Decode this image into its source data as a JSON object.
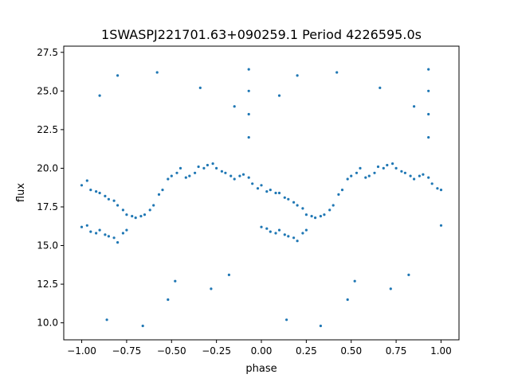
{
  "chart_data": {
    "type": "scatter",
    "title": "1SWASPJ221701.63+090259.1 Period 4226595.0s",
    "xlabel": "phase",
    "ylabel": "flux",
    "xlim": [
      -1.1,
      1.1
    ],
    "ylim": [
      8.9,
      27.9
    ],
    "xticks": [
      -1.0,
      -0.75,
      -0.5,
      -0.25,
      0.0,
      0.25,
      0.5,
      0.75,
      1.0
    ],
    "xtick_labels": [
      "−1.00",
      "−0.75",
      "−0.50",
      "−0.25",
      "0.00",
      "0.25",
      "0.50",
      "0.75",
      "1.00"
    ],
    "yticks": [
      10.0,
      12.5,
      15.0,
      17.5,
      20.0,
      22.5,
      25.0,
      27.5
    ],
    "ytick_labels": [
      "10.0",
      "12.5",
      "15.0",
      "17.5",
      "20.0",
      "22.5",
      "25.0",
      "27.5"
    ],
    "grid": false,
    "point_color": "#1f77b4",
    "series": [
      {
        "points": [
          [
            -1.0,
            18.9
          ],
          [
            -1.0,
            16.2
          ],
          [
            -0.97,
            19.2
          ],
          [
            -0.97,
            16.3
          ],
          [
            -0.95,
            18.6
          ],
          [
            -0.95,
            15.9
          ],
          [
            -0.92,
            18.5
          ],
          [
            -0.92,
            15.8
          ],
          [
            -0.9,
            18.4
          ],
          [
            -0.9,
            16.0
          ],
          [
            -0.87,
            18.2
          ],
          [
            -0.87,
            15.7
          ],
          [
            -0.85,
            18.0
          ],
          [
            -0.85,
            15.6
          ],
          [
            -0.82,
            17.9
          ],
          [
            -0.82,
            15.5
          ],
          [
            -0.8,
            17.6
          ],
          [
            -0.8,
            15.2
          ],
          [
            -0.77,
            17.3
          ],
          [
            -0.77,
            15.8
          ],
          [
            -0.75,
            17.0
          ],
          [
            -0.75,
            16.0
          ],
          [
            -0.72,
            16.9
          ],
          [
            -0.7,
            16.8
          ],
          [
            -0.67,
            16.9
          ],
          [
            -0.65,
            17.0
          ],
          [
            -0.62,
            17.3
          ],
          [
            -0.6,
            17.6
          ],
          [
            -0.57,
            18.3
          ],
          [
            -0.55,
            18.6
          ],
          [
            -0.52,
            19.3
          ],
          [
            -0.5,
            19.5
          ],
          [
            -0.47,
            19.7
          ],
          [
            -0.45,
            20.0
          ],
          [
            -0.42,
            19.4
          ],
          [
            -0.4,
            19.5
          ],
          [
            -0.37,
            19.7
          ],
          [
            -0.35,
            20.1
          ],
          [
            -0.32,
            20.0
          ],
          [
            -0.3,
            20.2
          ],
          [
            -0.27,
            20.3
          ],
          [
            -0.25,
            20.0
          ],
          [
            -0.22,
            19.8
          ],
          [
            -0.2,
            19.7
          ],
          [
            -0.17,
            19.5
          ],
          [
            -0.15,
            19.3
          ],
          [
            -0.12,
            19.5
          ],
          [
            -0.1,
            19.6
          ],
          [
            -0.07,
            19.4
          ],
          [
            -0.05,
            19.0
          ],
          [
            -0.02,
            18.7
          ],
          [
            0.0,
            18.9
          ],
          [
            0.0,
            16.2
          ],
          [
            0.03,
            18.5
          ],
          [
            0.03,
            16.1
          ],
          [
            0.05,
            18.6
          ],
          [
            0.05,
            15.9
          ],
          [
            0.08,
            18.4
          ],
          [
            0.08,
            15.8
          ],
          [
            0.1,
            18.4
          ],
          [
            0.1,
            16.0
          ],
          [
            0.13,
            18.1
          ],
          [
            0.13,
            15.7
          ],
          [
            0.15,
            18.0
          ],
          [
            0.15,
            15.6
          ],
          [
            0.18,
            17.8
          ],
          [
            0.18,
            15.5
          ],
          [
            0.2,
            17.6
          ],
          [
            0.2,
            15.3
          ],
          [
            0.23,
            17.4
          ],
          [
            0.23,
            15.8
          ],
          [
            0.25,
            17.0
          ],
          [
            0.25,
            16.0
          ],
          [
            0.28,
            16.9
          ],
          [
            0.3,
            16.8
          ],
          [
            0.33,
            16.9
          ],
          [
            0.35,
            17.0
          ],
          [
            0.38,
            17.3
          ],
          [
            0.4,
            17.6
          ],
          [
            0.43,
            18.3
          ],
          [
            0.45,
            18.6
          ],
          [
            0.48,
            19.3
          ],
          [
            0.5,
            19.5
          ],
          [
            0.53,
            19.7
          ],
          [
            0.55,
            20.0
          ],
          [
            0.58,
            19.4
          ],
          [
            0.6,
            19.5
          ],
          [
            0.63,
            19.7
          ],
          [
            0.65,
            20.1
          ],
          [
            0.68,
            20.0
          ],
          [
            0.7,
            20.2
          ],
          [
            0.73,
            20.3
          ],
          [
            0.75,
            20.0
          ],
          [
            0.78,
            19.8
          ],
          [
            0.8,
            19.7
          ],
          [
            0.83,
            19.5
          ],
          [
            0.85,
            19.3
          ],
          [
            0.88,
            19.5
          ],
          [
            0.9,
            19.6
          ],
          [
            0.93,
            19.4
          ],
          [
            0.95,
            19.0
          ],
          [
            0.98,
            18.7
          ],
          [
            1.0,
            18.6
          ],
          [
            1.0,
            16.3
          ],
          [
            -0.07,
            26.4
          ],
          [
            -0.07,
            25.0
          ],
          [
            -0.07,
            23.5
          ],
          [
            -0.07,
            22.0
          ],
          [
            0.93,
            26.4
          ],
          [
            0.93,
            25.0
          ],
          [
            0.93,
            23.5
          ],
          [
            0.93,
            22.0
          ],
          [
            -0.66,
            9.8
          ],
          [
            0.33,
            9.8
          ],
          [
            -0.86,
            10.2
          ],
          [
            0.14,
            10.2
          ],
          [
            -0.52,
            11.5
          ],
          [
            0.48,
            11.5
          ],
          [
            -0.58,
            26.2
          ],
          [
            0.42,
            26.2
          ],
          [
            -0.34,
            25.2
          ],
          [
            0.66,
            25.2
          ],
          [
            -0.15,
            24.0
          ],
          [
            0.85,
            24.0
          ],
          [
            -0.9,
            24.7
          ],
          [
            0.1,
            24.7
          ],
          [
            -0.8,
            26.0
          ],
          [
            0.2,
            26.0
          ],
          [
            -0.48,
            12.7
          ],
          [
            0.52,
            12.7
          ],
          [
            -0.28,
            12.2
          ],
          [
            0.72,
            12.2
          ],
          [
            -0.18,
            13.1
          ],
          [
            0.82,
            13.1
          ]
        ]
      }
    ]
  }
}
